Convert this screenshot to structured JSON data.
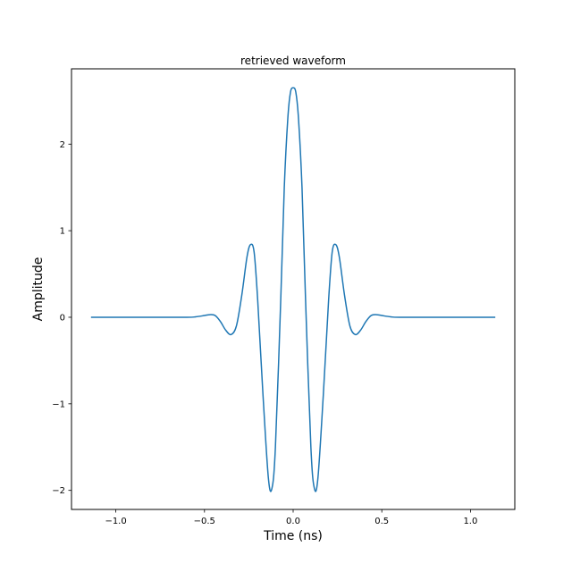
{
  "chart_data": {
    "type": "line",
    "title": "retrieved waveform",
    "xlabel": "Time (ns)",
    "ylabel": "Amplitude",
    "xlim": [
      -1.25,
      1.25
    ],
    "ylim": [
      -2.22,
      2.87
    ],
    "grid": false,
    "x_ticks": [
      -1.0,
      -0.5,
      0.0,
      0.5,
      1.0
    ],
    "x_tick_labels": [
      "−1.0",
      "−0.5",
      "0.0",
      "0.5",
      "1.0"
    ],
    "y_ticks": [
      -2,
      -1,
      0,
      1,
      2
    ],
    "y_tick_labels": [
      "−2",
      "−1",
      "0",
      "1",
      "2"
    ],
    "series": [
      {
        "color": "#1f77b4",
        "x": [
          -1.14,
          -1.0,
          -0.8,
          -0.6,
          -0.55,
          -0.5,
          -0.47,
          -0.44,
          -0.41,
          -0.38,
          -0.35,
          -0.32,
          -0.29,
          -0.26,
          -0.24,
          -0.22,
          -0.2,
          -0.17,
          -0.14,
          -0.12,
          -0.1,
          -0.07,
          -0.05,
          -0.03,
          -0.015,
          0.0,
          0.015,
          0.03,
          0.05,
          0.07,
          0.1,
          0.12,
          0.14,
          0.17,
          0.2,
          0.22,
          0.24,
          0.26,
          0.29,
          0.32,
          0.35,
          0.38,
          0.41,
          0.44,
          0.47,
          0.5,
          0.55,
          0.6,
          0.8,
          1.0,
          1.14
        ],
        "y": [
          0.0,
          0.0,
          0.0,
          0.0,
          0.005,
          0.02,
          0.03,
          0.02,
          -0.05,
          -0.15,
          -0.2,
          -0.1,
          0.25,
          0.7,
          0.84,
          0.75,
          0.2,
          -0.9,
          -1.85,
          -1.98,
          -1.5,
          0.2,
          1.5,
          2.3,
          2.6,
          2.65,
          2.6,
          2.3,
          1.5,
          0.2,
          -1.5,
          -1.98,
          -1.85,
          -0.9,
          0.2,
          0.75,
          0.84,
          0.7,
          0.25,
          -0.1,
          -0.2,
          -0.15,
          -0.05,
          0.02,
          0.03,
          0.02,
          0.005,
          0.0,
          0.0,
          0.0,
          0.0
        ]
      }
    ]
  }
}
